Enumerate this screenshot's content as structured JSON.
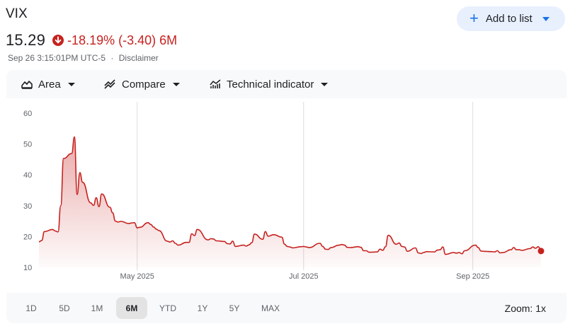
{
  "header": {
    "ticker": "VIX",
    "add_to_list_label": "Add to list",
    "price": "15.29",
    "change": "-18.19% (-3.40) 6M",
    "timestamp": "Sep 26 3:15:01PM UTC-5",
    "separator": "·",
    "disclaimer": "Disclaimer"
  },
  "toolbar": {
    "area_label": "Area",
    "compare_label": "Compare",
    "indicator_label": "Technical indicator"
  },
  "range": {
    "options": [
      "1D",
      "5D",
      "1M",
      "6M",
      "YTD",
      "1Y",
      "5Y",
      "MAX"
    ],
    "selected": "6M",
    "zoom_label": "Zoom: 1x"
  },
  "colors": {
    "accent": "#1a73e8",
    "negative": "#c5221f",
    "line": "#c5221f"
  },
  "chart_data": {
    "type": "area",
    "ylim": [
      10,
      60
    ],
    "yticks": [
      10,
      20,
      30,
      40,
      50,
      60
    ],
    "xticks": [
      {
        "label": "May 2025",
        "x": "2025-05-01"
      },
      {
        "label": "Jul 2025",
        "x": "2025-07-01"
      },
      {
        "label": "Sep 2025",
        "x": "2025-09-01"
      }
    ],
    "xlim": [
      "2025-03-26",
      "2025-09-26"
    ],
    "grid": "vertical",
    "series": [
      {
        "values": [
          [
            "2025-03-26",
            18.3
          ],
          [
            "2025-03-27",
            18.7
          ],
          [
            "2025-03-28",
            21.6
          ],
          [
            "2025-03-31",
            22.3
          ],
          [
            "2025-04-01",
            21.8
          ],
          [
            "2025-04-02",
            21.5
          ],
          [
            "2025-04-03",
            30.0
          ],
          [
            "2025-04-04",
            45.3
          ],
          [
            "2025-04-07",
            46.9
          ],
          [
            "2025-04-08",
            52.3
          ],
          [
            "2025-04-09",
            33.6
          ],
          [
            "2025-04-10",
            40.7
          ],
          [
            "2025-04-11",
            37.6
          ],
          [
            "2025-04-14",
            30.9
          ],
          [
            "2025-04-15",
            30.1
          ],
          [
            "2025-04-16",
            32.6
          ],
          [
            "2025-04-17",
            29.7
          ],
          [
            "2025-04-18",
            33.8
          ],
          [
            "2025-04-21",
            29.5
          ],
          [
            "2025-04-22",
            27.7
          ],
          [
            "2025-04-23",
            25.0
          ],
          [
            "2025-04-24",
            24.7
          ],
          [
            "2025-04-25",
            24.9
          ],
          [
            "2025-04-28",
            24.2
          ],
          [
            "2025-04-29",
            24.4
          ],
          [
            "2025-04-30",
            24.5
          ],
          [
            "2025-05-01",
            22.8
          ],
          [
            "2025-05-02",
            23.0
          ],
          [
            "2025-05-05",
            24.5
          ],
          [
            "2025-05-06",
            23.9
          ],
          [
            "2025-05-07",
            23.1
          ],
          [
            "2025-05-08",
            22.4
          ],
          [
            "2025-05-09",
            21.9
          ],
          [
            "2025-05-12",
            18.5
          ],
          [
            "2025-05-13",
            18.2
          ],
          [
            "2025-05-14",
            18.6
          ],
          [
            "2025-05-15",
            17.8
          ],
          [
            "2025-05-16",
            17.2
          ],
          [
            "2025-05-19",
            18.1
          ],
          [
            "2025-05-20",
            18.1
          ],
          [
            "2025-05-21",
            20.9
          ],
          [
            "2025-05-22",
            20.3
          ],
          [
            "2025-05-23",
            22.3
          ],
          [
            "2025-05-27",
            18.9
          ],
          [
            "2025-05-28",
            19.3
          ],
          [
            "2025-05-29",
            19.2
          ],
          [
            "2025-05-30",
            18.6
          ],
          [
            "2025-06-02",
            18.4
          ],
          [
            "2025-06-03",
            17.7
          ],
          [
            "2025-06-04",
            17.6
          ],
          [
            "2025-06-05",
            18.5
          ],
          [
            "2025-06-06",
            16.8
          ],
          [
            "2025-06-09",
            17.2
          ],
          [
            "2025-06-10",
            16.9
          ],
          [
            "2025-06-11",
            17.3
          ],
          [
            "2025-06-12",
            18.0
          ],
          [
            "2025-06-13",
            20.8
          ],
          [
            "2025-06-16",
            19.1
          ],
          [
            "2025-06-17",
            21.6
          ],
          [
            "2025-06-18",
            20.1
          ],
          [
            "2025-06-20",
            20.6
          ],
          [
            "2025-06-23",
            19.8
          ],
          [
            "2025-06-24",
            17.5
          ],
          [
            "2025-06-25",
            16.8
          ],
          [
            "2025-06-26",
            16.6
          ],
          [
            "2025-06-27",
            16.3
          ],
          [
            "2025-06-30",
            16.7
          ],
          [
            "2025-07-01",
            16.8
          ],
          [
            "2025-07-02",
            16.6
          ],
          [
            "2025-07-03",
            16.4
          ],
          [
            "2025-07-07",
            17.8
          ],
          [
            "2025-07-08",
            16.8
          ],
          [
            "2025-07-09",
            15.9
          ],
          [
            "2025-07-10",
            15.8
          ],
          [
            "2025-07-11",
            16.4
          ],
          [
            "2025-07-14",
            17.2
          ],
          [
            "2025-07-15",
            17.4
          ],
          [
            "2025-07-16",
            17.2
          ],
          [
            "2025-07-17",
            16.5
          ],
          [
            "2025-07-18",
            16.4
          ],
          [
            "2025-07-21",
            16.7
          ],
          [
            "2025-07-22",
            16.5
          ],
          [
            "2025-07-23",
            15.4
          ],
          [
            "2025-07-24",
            15.4
          ],
          [
            "2025-07-25",
            14.9
          ],
          [
            "2025-07-28",
            15.0
          ],
          [
            "2025-07-29",
            15.9
          ],
          [
            "2025-07-30",
            15.5
          ],
          [
            "2025-07-31",
            16.7
          ],
          [
            "2025-08-01",
            20.4
          ],
          [
            "2025-08-04",
            17.5
          ],
          [
            "2025-08-05",
            17.9
          ],
          [
            "2025-08-06",
            16.8
          ],
          [
            "2025-08-07",
            16.6
          ],
          [
            "2025-08-08",
            15.2
          ],
          [
            "2025-08-11",
            16.3
          ],
          [
            "2025-08-12",
            14.7
          ],
          [
            "2025-08-13",
            14.5
          ],
          [
            "2025-08-14",
            14.8
          ],
          [
            "2025-08-15",
            15.1
          ],
          [
            "2025-08-18",
            15.0
          ],
          [
            "2025-08-19",
            15.6
          ],
          [
            "2025-08-20",
            15.7
          ],
          [
            "2025-08-21",
            16.6
          ],
          [
            "2025-08-22",
            14.2
          ],
          [
            "2025-08-25",
            14.8
          ],
          [
            "2025-08-26",
            14.6
          ],
          [
            "2025-08-27",
            14.8
          ],
          [
            "2025-08-28",
            14.4
          ],
          [
            "2025-08-29",
            15.4
          ],
          [
            "2025-09-02",
            17.2
          ],
          [
            "2025-09-03",
            16.4
          ],
          [
            "2025-09-04",
            15.3
          ],
          [
            "2025-09-05",
            15.2
          ],
          [
            "2025-09-08",
            15.1
          ],
          [
            "2025-09-09",
            15.0
          ],
          [
            "2025-09-10",
            15.4
          ],
          [
            "2025-09-11",
            14.7
          ],
          [
            "2025-09-12",
            14.8
          ],
          [
            "2025-09-15",
            15.7
          ],
          [
            "2025-09-16",
            16.4
          ],
          [
            "2025-09-17",
            15.7
          ],
          [
            "2025-09-18",
            15.7
          ],
          [
            "2025-09-19",
            15.5
          ],
          [
            "2025-09-22",
            16.1
          ],
          [
            "2025-09-23",
            16.6
          ],
          [
            "2025-09-24",
            16.2
          ],
          [
            "2025-09-25",
            16.7
          ],
          [
            "2025-09-26",
            15.3
          ]
        ]
      }
    ]
  }
}
